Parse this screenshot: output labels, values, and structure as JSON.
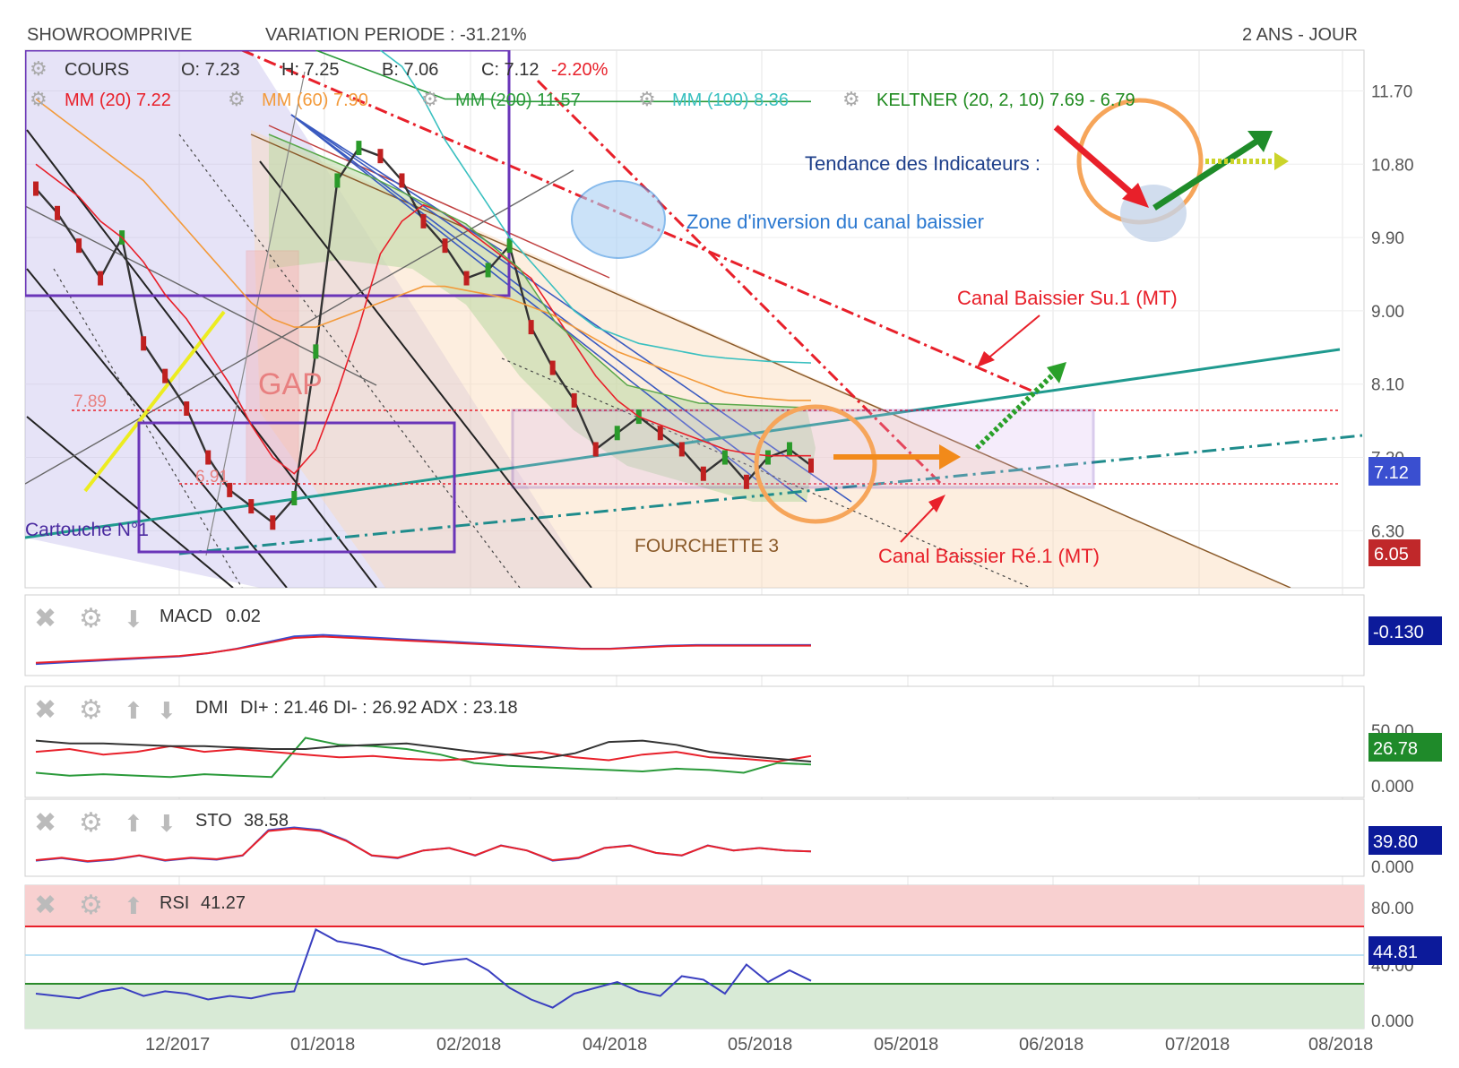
{
  "header": {
    "symbol": "SHOWROOMPRIVE",
    "variation": "VARIATION PERIODE : -31.21%",
    "period": "2 ANS - JOUR"
  },
  "legend": {
    "cours": {
      "label": "COURS",
      "o": "O: 7.23",
      "h": "H: 7.25",
      "b": "B: 7.06",
      "c": "C: 7.12",
      "chg": "-2.20%"
    },
    "mm20": "MM (20) 7.22",
    "mm60": "MM (60) 7.90",
    "mm200": "MM (200) 11.57",
    "mm100": "MM (100) 8.36",
    "keltner": "KELTNER (20, 2, 10) 7.69 - 6.79"
  },
  "annotations": {
    "tendance": "Tendance des Indicateurs :",
    "zone": "Zone d'inversion du canal baissier",
    "canal_su": "Canal Baissier Su.1 (MT)",
    "canal_re": "Canal Baissier Ré.1 (MT)",
    "fourchette": "FOURCHETTE 3",
    "gap": "GAP",
    "cartouche": "Cartouche N°1",
    "lvl_789": "7.89",
    "lvl_691": "6.91"
  },
  "price_axis": [
    "11.70",
    "10.80",
    "9.90",
    "9.00",
    "8.10",
    "7.20",
    "6.30"
  ],
  "price_badges": {
    "current": "7.12",
    "support": "6.05"
  },
  "x_axis": [
    "12/2017",
    "01/2018",
    "02/2018",
    "04/2018",
    "05/2018",
    "05/2018",
    "06/2018",
    "07/2018",
    "08/2018"
  ],
  "panels": {
    "macd": {
      "label": "MACD",
      "value": "0.02",
      "badge": "-0.130"
    },
    "dmi": {
      "label": "DMI",
      "value": "DI+ : 21.46 DI- : 26.92 ADX : 23.18",
      "axis": [
        "50.00",
        "0.000"
      ],
      "badge": "26.78"
    },
    "sto": {
      "label": "STO",
      "value": "38.58",
      "axis": [
        "0.000"
      ],
      "badge": "39.80"
    },
    "rsi": {
      "label": "RSI",
      "value": "41.27",
      "axis": [
        "80.00",
        "40.00",
        "0.000"
      ],
      "badge": "44.81"
    }
  },
  "colors": {
    "red": "#e8202a",
    "orange": "#f39a3a",
    "green": "#2a9a3a",
    "teal": "#2a9a9a",
    "purple": "#6a35b8",
    "blue": "#3a4fd0",
    "navy": "#0c1a9a"
  },
  "chart_data": {
    "type": "line",
    "title": "SHOWROOMPRIVE",
    "ylim": [
      5.6,
      12.2
    ],
    "series": [
      {
        "name": "COURS",
        "values": [
          10.5,
          10.2,
          9.8,
          9.4,
          9.9,
          8.6,
          8.2,
          7.8,
          7.2,
          6.8,
          6.6,
          6.4,
          6.7,
          8.5,
          10.6,
          11.0,
          10.9,
          10.6,
          10.1,
          9.8,
          9.4,
          9.5,
          9.8,
          8.8,
          8.3,
          7.9,
          7.3,
          7.5,
          7.7,
          7.5,
          7.3,
          7.0,
          7.2,
          6.9,
          7.2,
          7.3,
          7.1
        ]
      },
      {
        "name": "MM (20)",
        "values": [
          10.8,
          10.6,
          10.4,
          10.1,
          9.9,
          9.6,
          9.2,
          8.9,
          8.5,
          8.1,
          7.6,
          7.2,
          7.0,
          7.3,
          8.0,
          8.8,
          9.7,
          10.1,
          10.3,
          10.2,
          10.0,
          9.8,
          9.6,
          9.4,
          9.0,
          8.6,
          8.2,
          7.9,
          7.7,
          7.6,
          7.5,
          7.4,
          7.3,
          7.25,
          7.22,
          7.22,
          7.22
        ]
      },
      {
        "name": "MM (60)",
        "values": [
          11.6,
          11.4,
          11.2,
          11.0,
          10.8,
          10.6,
          10.3,
          10.0,
          9.7,
          9.4,
          9.1,
          8.9,
          8.8,
          8.8,
          8.9,
          9.0,
          9.1,
          9.2,
          9.3,
          9.3,
          9.25,
          9.2,
          9.15,
          9.05,
          8.95,
          8.8,
          8.65,
          8.5,
          8.4,
          8.3,
          8.2,
          8.1,
          8.0,
          7.95,
          7.92,
          7.9,
          7.9
        ]
      },
      {
        "name": "MM (200)",
        "values": [
          null,
          null,
          null,
          null,
          null,
          null,
          null,
          null,
          null,
          null,
          null,
          null,
          null,
          12.2,
          12.1,
          12.0,
          11.9,
          11.8,
          11.7,
          11.6,
          11.6,
          11.6,
          11.57,
          11.57,
          11.57,
          11.57,
          11.57,
          11.57,
          11.57,
          11.57,
          11.57,
          11.57,
          11.57,
          11.57,
          11.57,
          11.57,
          11.57
        ]
      },
      {
        "name": "MM (100)",
        "values": [
          null,
          null,
          null,
          null,
          null,
          null,
          null,
          null,
          null,
          null,
          null,
          null,
          null,
          null,
          null,
          null,
          12.2,
          12.0,
          11.6,
          11.1,
          10.7,
          10.3,
          9.9,
          9.6,
          9.3,
          9.0,
          8.8,
          8.7,
          8.6,
          8.55,
          8.5,
          8.45,
          8.42,
          8.4,
          8.38,
          8.37,
          8.36
        ]
      }
    ],
    "macd": [
      -0.6,
      -0.55,
      -0.5,
      -0.45,
      -0.4,
      -0.35,
      -0.25,
      -0.1,
      0.1,
      0.3,
      0.35,
      0.3,
      0.25,
      0.2,
      0.15,
      0.1,
      0.05,
      0.0,
      -0.05,
      -0.1,
      -0.1,
      -0.05,
      0.0,
      0.02,
      0.02,
      0.02,
      0.02,
      0.02
    ],
    "dmi": {
      "di_plus": [
        15,
        13,
        14,
        13,
        12,
        14,
        13,
        12,
        40,
        35,
        34,
        32,
        28,
        22,
        20,
        19,
        18,
        17,
        16,
        18,
        17,
        15,
        22,
        21
      ],
      "di_minus": [
        30,
        32,
        28,
        30,
        34,
        30,
        32,
        30,
        28,
        26,
        27,
        25,
        24,
        25,
        28,
        30,
        26,
        24,
        28,
        30,
        26,
        25,
        23,
        27
      ],
      "adx": [
        38,
        36,
        36,
        35,
        34,
        34,
        33,
        32,
        32,
        34,
        35,
        36,
        33,
        30,
        28,
        25,
        29,
        37,
        38,
        35,
        30,
        27,
        25,
        23
      ]
    },
    "sto": [
      20,
      25,
      18,
      22,
      30,
      20,
      25,
      22,
      30,
      80,
      85,
      80,
      60,
      30,
      25,
      40,
      45,
      30,
      50,
      40,
      20,
      25,
      45,
      50,
      35,
      30,
      50,
      40,
      45,
      40,
      38
    ],
    "rsi": [
      30,
      28,
      26,
      32,
      35,
      28,
      32,
      30,
      25,
      28,
      26,
      30,
      32,
      85,
      75,
      72,
      68,
      60,
      55,
      58,
      60,
      50,
      35,
      25,
      18,
      30,
      35,
      40,
      32,
      28,
      45,
      42,
      30,
      55,
      40,
      50,
      41
    ]
  }
}
